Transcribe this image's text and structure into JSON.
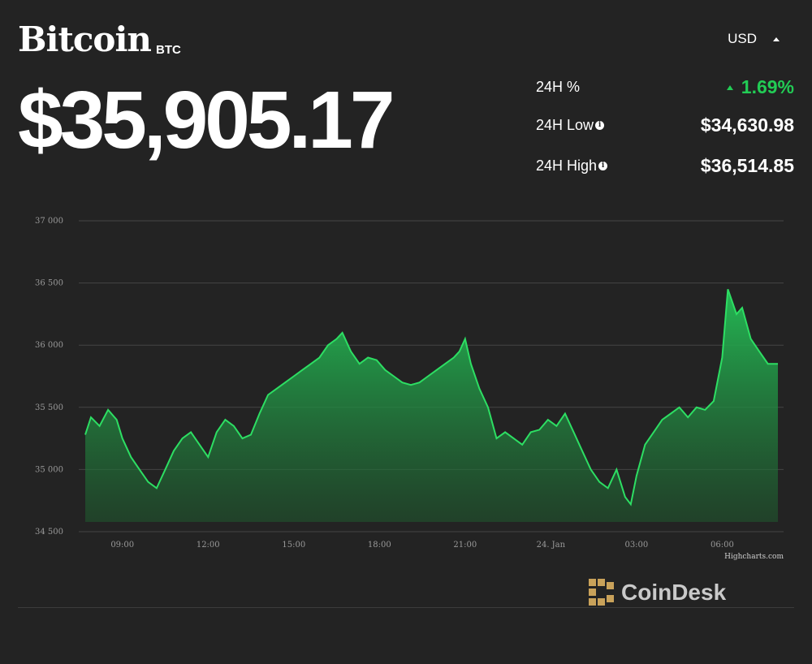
{
  "header": {
    "asset_name": "Bitcoin",
    "ticker": "BTC",
    "price": "$35,905.17",
    "currency": "USD"
  },
  "stats": {
    "pct_label": "24H %",
    "pct_value": "1.69%",
    "low_label": "24H Low",
    "low_value": "$34,630.98",
    "high_label": "24H High",
    "high_value": "$36,514.85"
  },
  "brand": {
    "name": "CoinDesk"
  },
  "colors": {
    "background": "#232323",
    "line": "#2dde63",
    "positive": "#22cc55",
    "gridline": "#454545"
  },
  "chart_data": {
    "type": "area",
    "credit": "Highcharts.com",
    "xlabel": "",
    "ylabel": "",
    "ylim": [
      34500,
      37000
    ],
    "xlim": [
      7.7,
      31.95
    ],
    "grid": true,
    "y_ticks": [
      34500,
      35000,
      35500,
      36000,
      36500,
      37000
    ],
    "y_tick_labels": [
      "34 500",
      "35 000",
      "35 500",
      "36 000",
      "36 500",
      "37 000"
    ],
    "x_ticks": [
      9,
      12,
      15,
      18,
      21,
      24,
      27,
      30
    ],
    "x_tick_labels": [
      "09:00",
      "12:00",
      "15:00",
      "18:00",
      "21:00",
      "24. Jan",
      "03:00",
      "06:00"
    ],
    "series": [
      {
        "x": [
          7.7,
          7.9,
          8.2,
          8.5,
          8.8,
          9.0,
          9.3,
          9.6,
          9.9,
          10.2,
          10.5,
          10.8,
          11.1,
          11.4,
          11.7,
          12.0,
          12.3,
          12.6,
          12.9,
          13.2,
          13.5,
          13.8,
          14.1,
          14.4,
          14.7,
          15.0,
          15.3,
          15.6,
          15.9,
          16.2,
          16.5,
          16.7,
          17.0,
          17.3,
          17.6,
          17.9,
          18.2,
          18.5,
          18.8,
          19.1,
          19.4,
          19.7,
          20.0,
          20.3,
          20.6,
          20.8,
          21.0,
          21.2,
          21.5,
          21.8,
          22.1,
          22.4,
          22.7,
          23.0,
          23.3,
          23.6,
          23.9,
          24.2,
          24.5,
          24.8,
          25.1,
          25.4,
          25.7,
          26.0,
          26.3,
          26.6,
          26.8,
          27.0,
          27.3,
          27.6,
          27.9,
          28.2,
          28.5,
          28.8,
          29.1,
          29.4,
          29.7,
          30.0,
          30.2,
          30.35,
          30.5,
          30.7,
          31.0,
          31.3,
          31.6,
          31.95
        ],
        "y": [
          35280,
          35420,
          35350,
          35480,
          35400,
          35250,
          35100,
          35000,
          34900,
          34850,
          35000,
          35150,
          35250,
          35300,
          35200,
          35100,
          35300,
          35400,
          35350,
          35250,
          35280,
          35450,
          35600,
          35650,
          35700,
          35750,
          35800,
          35850,
          35900,
          36000,
          36050,
          36100,
          35950,
          35850,
          35900,
          35880,
          35800,
          35750,
          35700,
          35680,
          35700,
          35750,
          35800,
          35850,
          35900,
          35950,
          36050,
          35850,
          35650,
          35500,
          35250,
          35300,
          35250,
          35200,
          35300,
          35320,
          35400,
          35350,
          35450,
          35300,
          35150,
          35000,
          34900,
          34850,
          35000,
          34780,
          34720,
          34950,
          35200,
          35300,
          35400,
          35450,
          35500,
          35420,
          35500,
          35480,
          35550,
          35900,
          36450,
          36350,
          36250,
          36300,
          36050,
          35950,
          35850,
          35850
        ]
      }
    ]
  }
}
